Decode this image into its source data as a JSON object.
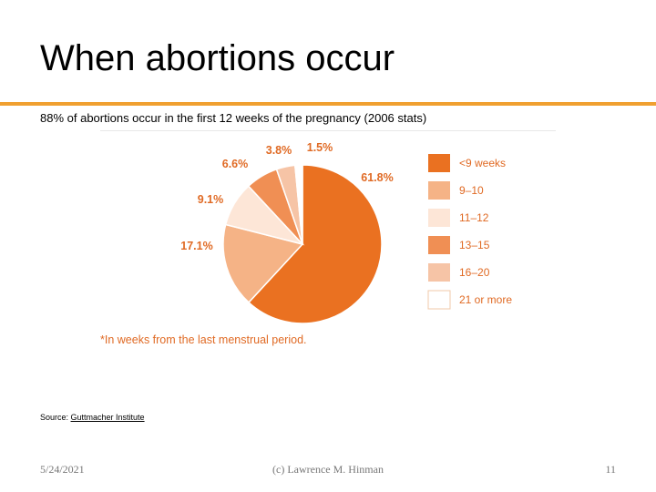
{
  "slide": {
    "title": "When abortions occur",
    "subtitle": "88% of abortions occur in the first 12 weeks of the pregnancy (2006 stats)",
    "footnote": "*In weeks from the last menstrual period.",
    "source_label": "Source: ",
    "source_link": "Guttmacher Institute",
    "date": "5/24/2021",
    "author": "(c) Lawrence M. Hinman",
    "page": "11"
  },
  "colors": {
    "rule": "#f0a030",
    "label": "#e06a24"
  },
  "chart_data": {
    "type": "pie",
    "legend_position": "right",
    "slices": [
      {
        "name": "<9 weeks",
        "value": 61.8,
        "label": "61.8%",
        "color": "#ea7121"
      },
      {
        "name": "9–10",
        "value": 17.1,
        "label": "17.1%",
        "color": "#f5b386"
      },
      {
        "name": "11–12",
        "value": 9.1,
        "label": "9.1%",
        "color": "#fde6d7"
      },
      {
        "name": "13–15",
        "value": 6.6,
        "label": "6.6%",
        "color": "#f08f54"
      },
      {
        "name": "16–20",
        "value": 3.8,
        "label": "3.8%",
        "color": "#f6c4a6"
      },
      {
        "name": "21 or more",
        "value": 1.5,
        "label": "1.5%",
        "color": "#ffffff"
      }
    ]
  }
}
